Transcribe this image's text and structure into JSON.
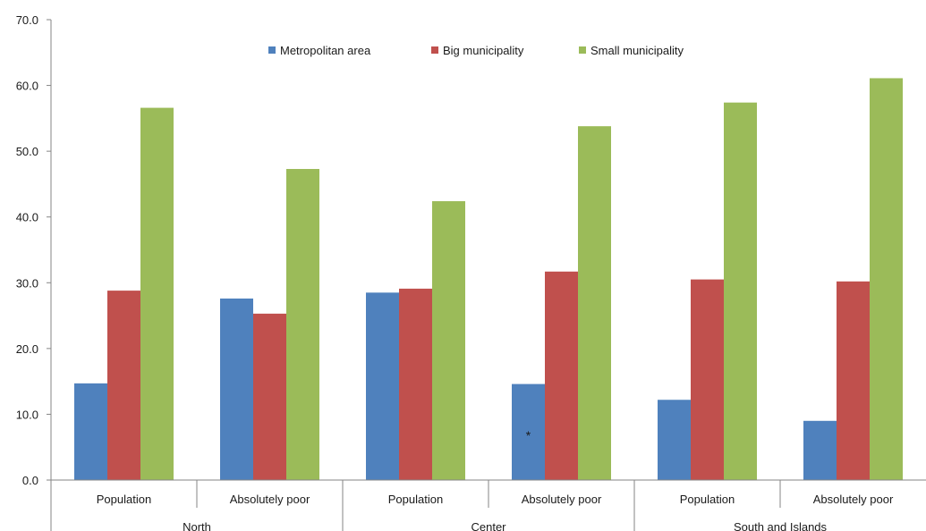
{
  "chart_data": {
    "type": "bar",
    "title": "",
    "xlabel": "",
    "ylabel": "",
    "ylim": [
      0,
      70
    ],
    "yticks": [
      "0.0",
      "10.0",
      "20.0",
      "30.0",
      "40.0",
      "50.0",
      "60.0",
      "70.0"
    ],
    "grid": false,
    "legend_position": "top",
    "categories": [
      "Population",
      "Absolutely poor",
      "Population",
      "Absolutely poor",
      "Population",
      "Absolutely poor"
    ],
    "groups": [
      {
        "label": "North",
        "categories": [
          0,
          1
        ]
      },
      {
        "label": "Center",
        "categories": [
          2,
          3
        ]
      },
      {
        "label": "South and Islands",
        "categories": [
          4,
          5
        ]
      }
    ],
    "series": [
      {
        "name": "Metropolitan area",
        "color": "#4f81bd",
        "values": [
          14.7,
          27.6,
          28.5,
          14.6,
          12.2,
          9.0
        ]
      },
      {
        "name": "Big municipality",
        "color": "#c0504d",
        "values": [
          28.8,
          25.3,
          29.1,
          31.7,
          30.5,
          30.2
        ]
      },
      {
        "name": "Small municipality",
        "color": "#9bbb59",
        "values": [
          56.6,
          47.3,
          42.4,
          53.8,
          57.4,
          61.1
        ]
      }
    ],
    "annotations": [
      {
        "text": "*",
        "category": 3,
        "series": "Metropolitan area"
      }
    ]
  }
}
